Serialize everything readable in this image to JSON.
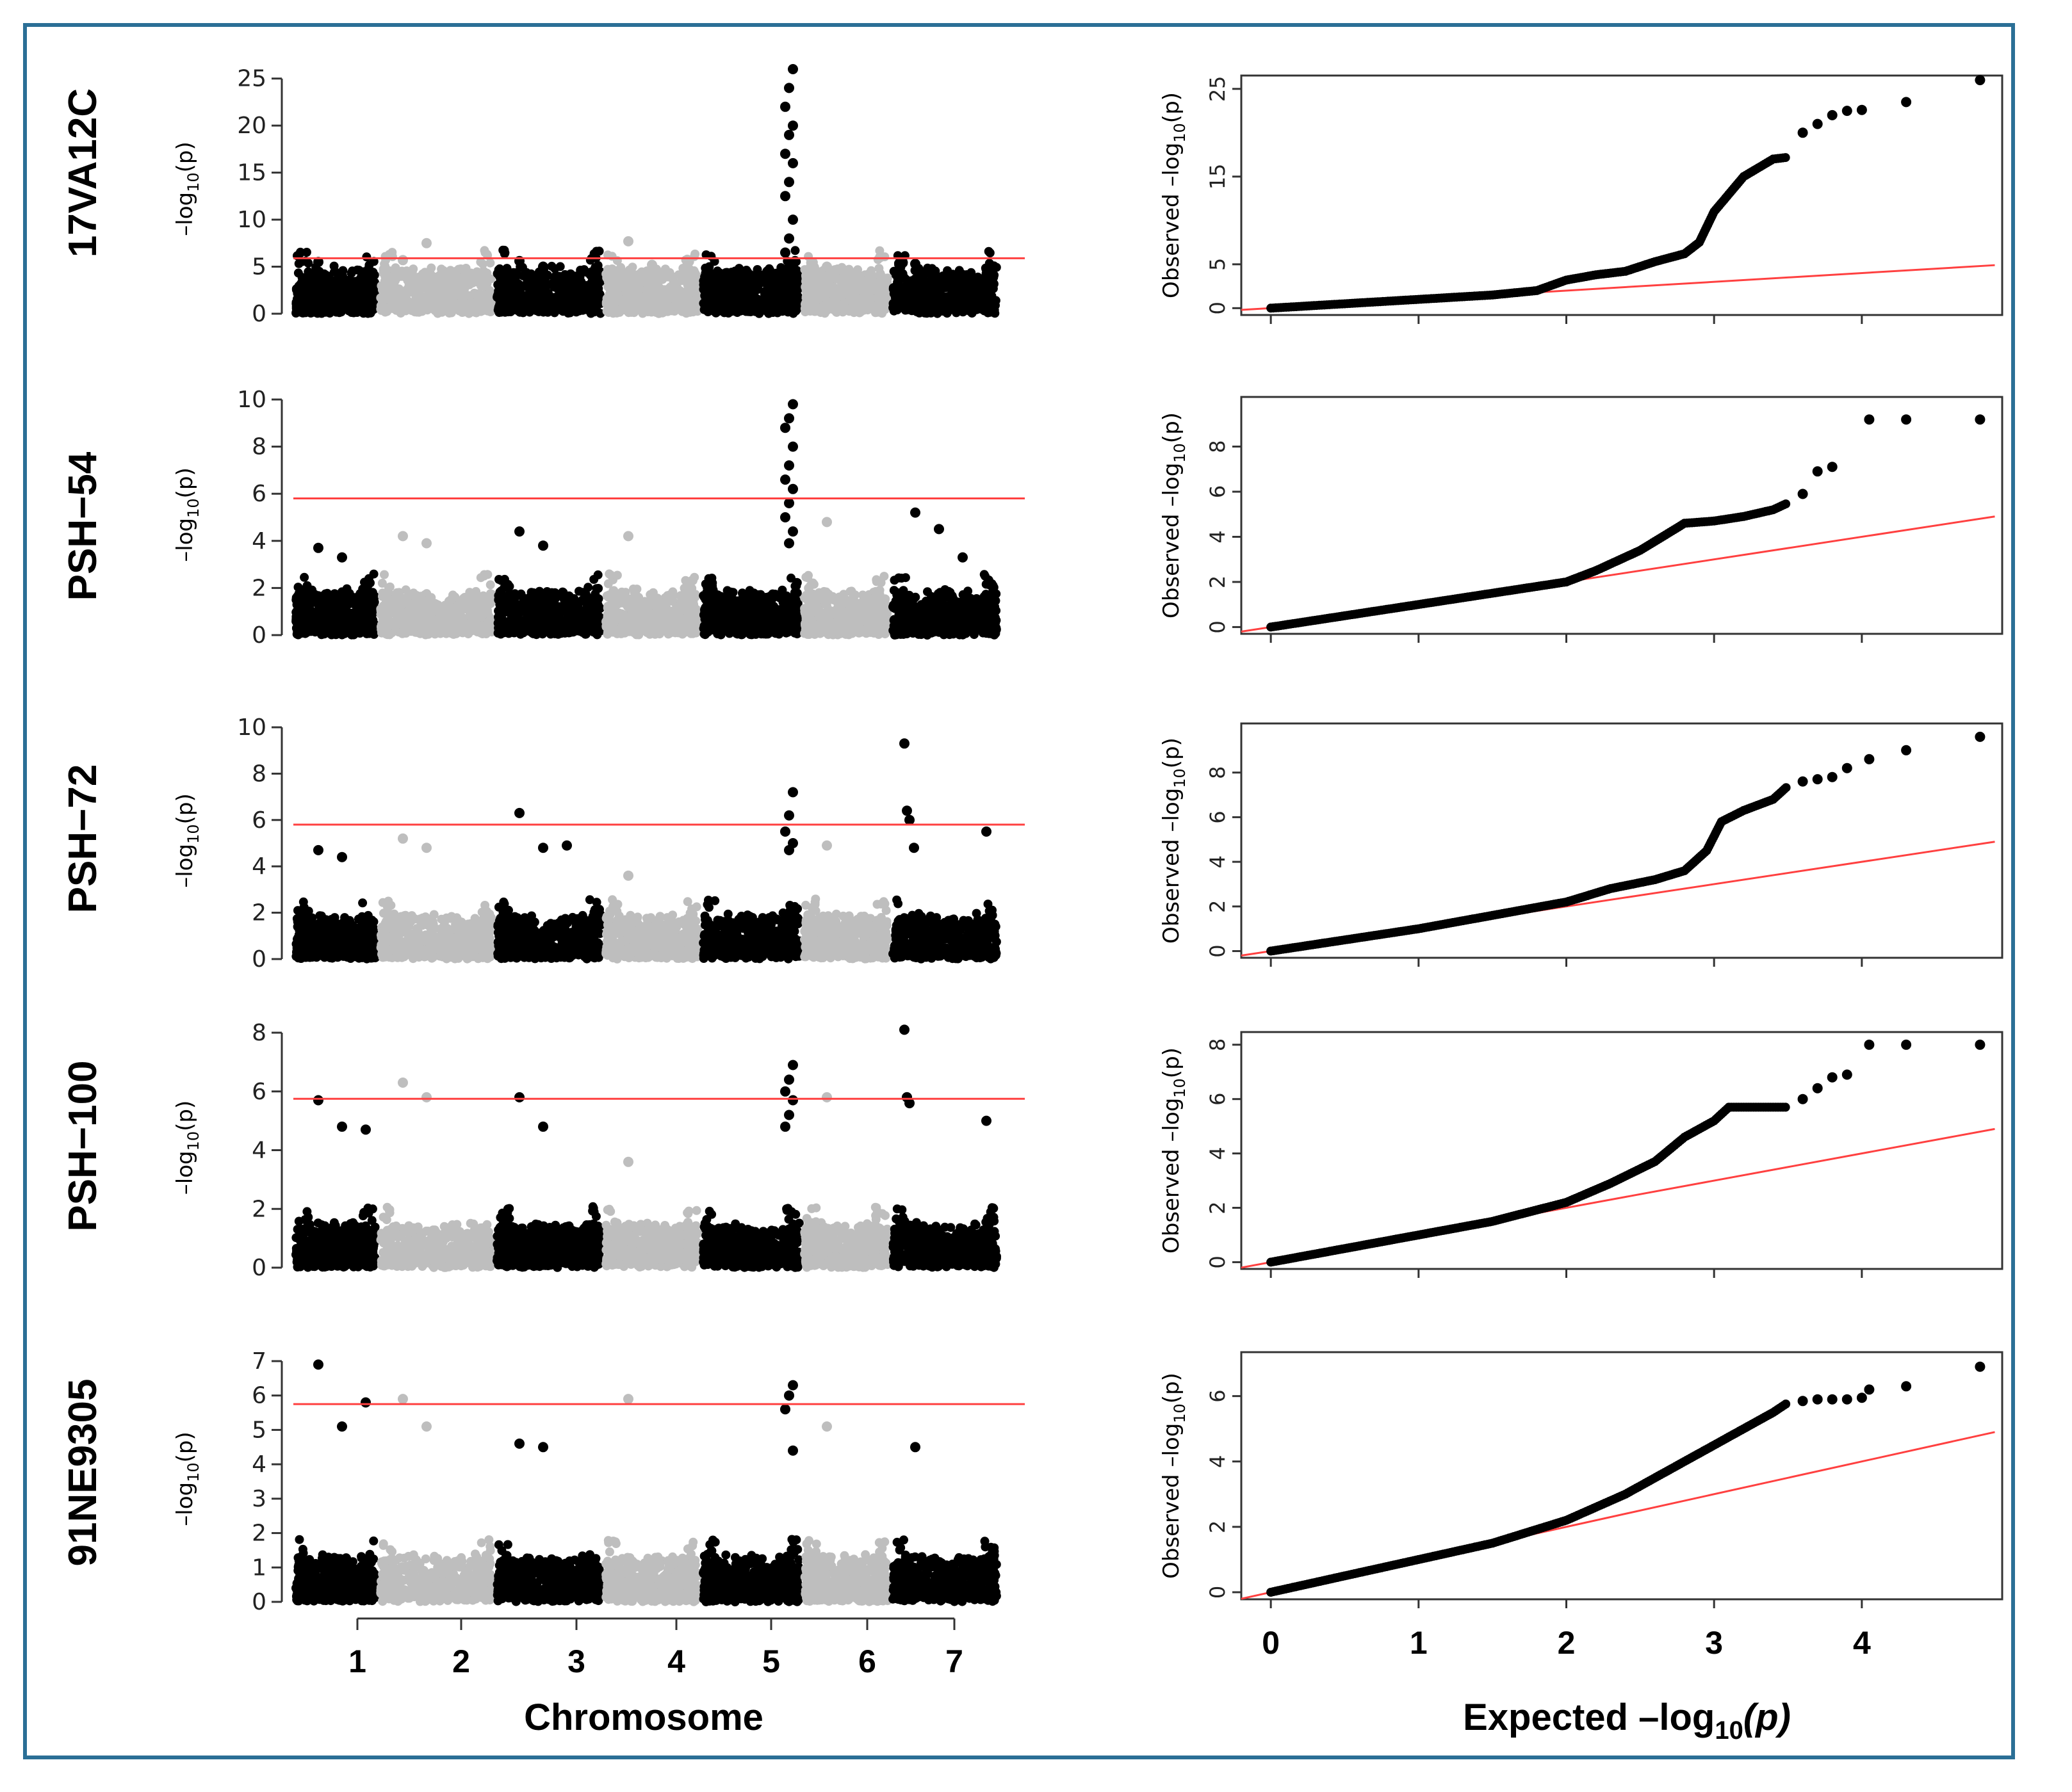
{
  "colors": {
    "frame": "#2b6f96",
    "point_dark": "#000000",
    "point_light": "#bebebe",
    "threshold_line": "#ff4040",
    "qq_reference_line": "#ff4040"
  },
  "manhattan_x_title": "Chromosome",
  "qq_x_title_prefix": "Expected –log",
  "qq_x_title_sub": "10",
  "qq_x_title_suffix": "(p)",
  "manhattan_ylabel_prefix": "–log",
  "manhattan_ylabel_sub": "10",
  "manhattan_ylabel_suffix": "(p)",
  "qq_ylabel_prefix": "Observed –log",
  "qq_ylabel_sub": "10",
  "qq_ylabel_suffix": "(p)",
  "chart_data": [
    {
      "type": "scatter",
      "kind": "manhattan",
      "panel": "17VA12C",
      "xlabel": "Chromosome",
      "ylabel": "–log10(p)",
      "chromosomes": [
        "1",
        "2",
        "3",
        "4",
        "5",
        "6",
        "7"
      ],
      "ylim": [
        0,
        26
      ],
      "yticks": [
        0,
        5,
        10,
        15,
        20,
        25
      ],
      "threshold": 5.9,
      "peaks": [
        {
          "chromosome": "1",
          "values": [
            5.5,
            4.0
          ]
        },
        {
          "chromosome": "2",
          "values": [
            5.7,
            7.5
          ]
        },
        {
          "chromosome": "3",
          "values": [
            5.6,
            5.0
          ]
        },
        {
          "chromosome": "4",
          "values": [
            7.7,
            5.2
          ]
        },
        {
          "chromosome": "5",
          "values": [
            26.0,
            24.0,
            22.0,
            20.0,
            19.0,
            17.0,
            16.0,
            14.0,
            12.5,
            10.0,
            8.0,
            6.5,
            5.0
          ]
        },
        {
          "chromosome": "6",
          "values": [
            5.0
          ]
        },
        {
          "chromosome": "7",
          "values": [
            5.3
          ]
        }
      ]
    },
    {
      "type": "scatter",
      "kind": "manhattan",
      "panel": "PSH−54",
      "xlabel": "Chromosome",
      "ylabel": "–log10(p)",
      "chromosomes": [
        "1",
        "2",
        "3",
        "4",
        "5",
        "6",
        "7"
      ],
      "ylim": [
        0,
        10
      ],
      "yticks": [
        0,
        2,
        4,
        6,
        8,
        10
      ],
      "threshold": 5.8,
      "peaks": [
        {
          "chromosome": "1",
          "values": [
            3.7,
            3.3
          ]
        },
        {
          "chromosome": "2",
          "values": [
            4.2,
            3.9
          ]
        },
        {
          "chromosome": "3",
          "values": [
            4.4,
            3.8
          ]
        },
        {
          "chromosome": "4",
          "values": [
            4.2
          ]
        },
        {
          "chromosome": "5",
          "values": [
            9.8,
            9.2,
            8.8,
            8.0,
            7.2,
            6.6,
            6.2,
            5.6,
            5.0,
            4.4,
            3.9
          ]
        },
        {
          "chromosome": "6",
          "values": [
            4.8
          ]
        },
        {
          "chromosome": "7",
          "values": [
            5.2,
            4.5,
            3.3
          ]
        }
      ]
    },
    {
      "type": "scatter",
      "kind": "manhattan",
      "panel": "PSH−72",
      "xlabel": "Chromosome",
      "ylabel": "–log10(p)",
      "chromosomes": [
        "1",
        "2",
        "3",
        "4",
        "5",
        "6",
        "7"
      ],
      "ylim": [
        0,
        10
      ],
      "yticks": [
        0,
        2,
        4,
        6,
        8,
        10
      ],
      "threshold": 5.8,
      "peaks": [
        {
          "chromosome": "1",
          "values": [
            4.7,
            4.4
          ]
        },
        {
          "chromosome": "2",
          "values": [
            5.2,
            4.8
          ]
        },
        {
          "chromosome": "3",
          "values": [
            6.3,
            4.8,
            4.9
          ]
        },
        {
          "chromosome": "4",
          "values": [
            3.6
          ]
        },
        {
          "chromosome": "5",
          "values": [
            7.2,
            6.2,
            5.5,
            5.0,
            4.7
          ]
        },
        {
          "chromosome": "6",
          "values": [
            4.9
          ]
        },
        {
          "chromosome": "7",
          "values": [
            9.3,
            6.4,
            6.0,
            5.5,
            4.8
          ]
        }
      ]
    },
    {
      "type": "scatter",
      "kind": "manhattan",
      "panel": "PSH−100",
      "xlabel": "Chromosome",
      "ylabel": "–log10(p)",
      "chromosomes": [
        "1",
        "2",
        "3",
        "4",
        "5",
        "6",
        "7"
      ],
      "ylim": [
        0,
        8
      ],
      "yticks": [
        0,
        2,
        4,
        6,
        8
      ],
      "threshold": 5.75,
      "peaks": [
        {
          "chromosome": "1",
          "values": [
            5.7,
            4.8,
            4.7
          ]
        },
        {
          "chromosome": "2",
          "values": [
            6.3,
            5.8
          ]
        },
        {
          "chromosome": "3",
          "values": [
            5.8,
            4.8
          ]
        },
        {
          "chromosome": "4",
          "values": [
            3.6
          ]
        },
        {
          "chromosome": "5",
          "values": [
            6.9,
            6.4,
            6.0,
            5.7,
            5.2,
            4.8
          ]
        },
        {
          "chromosome": "6",
          "values": [
            5.8
          ]
        },
        {
          "chromosome": "7",
          "values": [
            8.1,
            5.8,
            5.6,
            5.0,
            5.8
          ]
        }
      ]
    },
    {
      "type": "scatter",
      "kind": "manhattan",
      "panel": "91NE9305",
      "xlabel": "Chromosome",
      "ylabel": "–log10(p)",
      "chromosomes": [
        "1",
        "2",
        "3",
        "4",
        "5",
        "6",
        "7"
      ],
      "ylim": [
        0,
        7
      ],
      "yticks": [
        0,
        1,
        2,
        3,
        4,
        5,
        6,
        7
      ],
      "threshold": 5.75,
      "peaks": [
        {
          "chromosome": "1",
          "values": [
            6.9,
            5.1,
            5.8
          ]
        },
        {
          "chromosome": "2",
          "values": [
            5.9,
            5.1
          ]
        },
        {
          "chromosome": "3",
          "values": [
            4.6,
            4.5
          ]
        },
        {
          "chromosome": "4",
          "values": [
            5.9
          ]
        },
        {
          "chromosome": "5",
          "values": [
            6.3,
            6.0,
            5.6,
            4.4
          ]
        },
        {
          "chromosome": "6",
          "values": [
            5.1
          ]
        },
        {
          "chromosome": "7",
          "values": [
            4.5
          ]
        }
      ]
    },
    {
      "type": "scatter",
      "kind": "qq",
      "panel": "17VA12C",
      "xlabel": "Expected –log10(p)",
      "ylabel": "Observed –log10(p)",
      "xlim": [
        0,
        4.9
      ],
      "xticks": [
        0,
        1,
        2,
        3,
        4
      ],
      "ylim": [
        0,
        26
      ],
      "yticks": [
        0,
        5,
        15,
        25
      ],
      "reference_line": {
        "x": [
          -0.2,
          4.9
        ],
        "y": [
          -0.2,
          4.9
        ]
      },
      "curve_x": [
        0,
        0.5,
        1.0,
        1.5,
        1.8,
        2.0,
        2.2,
        2.4,
        2.6,
        2.8,
        2.9,
        3.0,
        3.2,
        3.4,
        3.5
      ],
      "curve_y": [
        0,
        0.5,
        1.0,
        1.5,
        2.0,
        3.2,
        3.8,
        4.2,
        5.3,
        6.2,
        7.5,
        11.0,
        15.0,
        17.0,
        17.2
      ],
      "tail_x": [
        3.6,
        3.7,
        3.8,
        3.9,
        4.0,
        4.3,
        4.8
      ],
      "tail_y": [
        20.0,
        21.0,
        22.0,
        22.5,
        22.6,
        23.5,
        26.0
      ]
    },
    {
      "type": "scatter",
      "kind": "qq",
      "panel": "PSH−54",
      "xlabel": "Expected –log10(p)",
      "ylabel": "Observed –log10(p)",
      "xlim": [
        0,
        4.9
      ],
      "xticks": [
        0,
        1,
        2,
        3,
        4
      ],
      "ylim": [
        0,
        10
      ],
      "yticks": [
        0,
        2,
        4,
        6,
        8
      ],
      "reference_line": {
        "x": [
          -0.2,
          4.9
        ],
        "y": [
          -0.2,
          4.9
        ]
      },
      "curve_x": [
        0,
        0.5,
        1.0,
        1.5,
        2.0,
        2.2,
        2.5,
        2.7,
        2.8,
        3.0,
        3.2,
        3.4,
        3.5
      ],
      "curve_y": [
        0,
        0.5,
        1.0,
        1.5,
        2.0,
        2.5,
        3.4,
        4.2,
        4.6,
        4.7,
        4.9,
        5.2,
        5.5
      ],
      "tail_x": [
        3.6,
        3.7,
        3.8,
        4.05,
        4.3,
        4.8
      ],
      "tail_y": [
        5.9,
        6.9,
        7.1,
        9.2,
        9.2,
        9.2
      ]
    },
    {
      "type": "scatter",
      "kind": "qq",
      "panel": "PSH−72",
      "xlabel": "Expected –log10(p)",
      "ylabel": "Observed –log10(p)",
      "xlim": [
        0,
        4.9
      ],
      "xticks": [
        0,
        1,
        2,
        3,
        4
      ],
      "ylim": [
        0,
        10
      ],
      "yticks": [
        0,
        2,
        4,
        6,
        8
      ],
      "reference_line": {
        "x": [
          -0.2,
          4.9
        ],
        "y": [
          -0.2,
          4.9
        ]
      },
      "curve_x": [
        0,
        0.5,
        1.0,
        1.5,
        2.0,
        2.3,
        2.6,
        2.8,
        2.95,
        3.05,
        3.2,
        3.4,
        3.5
      ],
      "curve_y": [
        0,
        0.5,
        1.0,
        1.6,
        2.2,
        2.8,
        3.2,
        3.6,
        4.5,
        5.8,
        6.3,
        6.8,
        7.4
      ],
      "tail_x": [
        3.6,
        3.7,
        3.8,
        3.9,
        4.05,
        4.3,
        4.8
      ],
      "tail_y": [
        7.6,
        7.7,
        7.8,
        8.2,
        8.6,
        9.0,
        9.6
      ]
    },
    {
      "type": "scatter",
      "kind": "qq",
      "panel": "PSH−100",
      "xlabel": "Expected –log10(p)",
      "ylabel": "Observed –log10(p)",
      "xlim": [
        0,
        4.9
      ],
      "xticks": [
        0,
        1,
        2,
        3,
        4
      ],
      "ylim": [
        0,
        8.3
      ],
      "yticks": [
        0,
        2,
        4,
        6,
        8
      ],
      "reference_line": {
        "x": [
          -0.2,
          4.9
        ],
        "y": [
          -0.2,
          4.9
        ]
      },
      "curve_x": [
        0,
        0.5,
        1.0,
        1.5,
        2.0,
        2.3,
        2.6,
        2.8,
        3.0,
        3.1,
        3.3,
        3.5
      ],
      "curve_y": [
        0,
        0.5,
        1.0,
        1.5,
        2.2,
        2.9,
        3.7,
        4.6,
        5.2,
        5.7,
        5.7,
        5.7
      ],
      "tail_x": [
        3.6,
        3.7,
        3.8,
        3.9,
        4.05,
        4.3,
        4.8
      ],
      "tail_y": [
        6.0,
        6.4,
        6.8,
        6.9,
        8.0,
        8.0,
        8.0
      ]
    },
    {
      "type": "scatter",
      "kind": "qq",
      "panel": "91NE9305",
      "xlabel": "Expected –log10(p)",
      "ylabel": "Observed –log10(p)",
      "xlim": [
        0,
        4.9
      ],
      "xticks": [
        0,
        1,
        2,
        3,
        4
      ],
      "ylim": [
        0,
        7.2
      ],
      "yticks": [
        0,
        2,
        4,
        6
      ],
      "reference_line": {
        "x": [
          -0.2,
          4.9
        ],
        "y": [
          -0.2,
          4.9
        ]
      },
      "curve_x": [
        0,
        0.5,
        1.0,
        1.5,
        2.0,
        2.4,
        2.8,
        3.0,
        3.2,
        3.4,
        3.5
      ],
      "curve_y": [
        0,
        0.5,
        1.0,
        1.5,
        2.2,
        3.0,
        4.0,
        4.5,
        5.0,
        5.5,
        5.8
      ],
      "tail_x": [
        3.6,
        3.7,
        3.8,
        3.9,
        4.0,
        4.05,
        4.3,
        4.8
      ],
      "tail_y": [
        5.85,
        5.9,
        5.9,
        5.9,
        5.95,
        6.2,
        6.3,
        6.9
      ]
    }
  ]
}
